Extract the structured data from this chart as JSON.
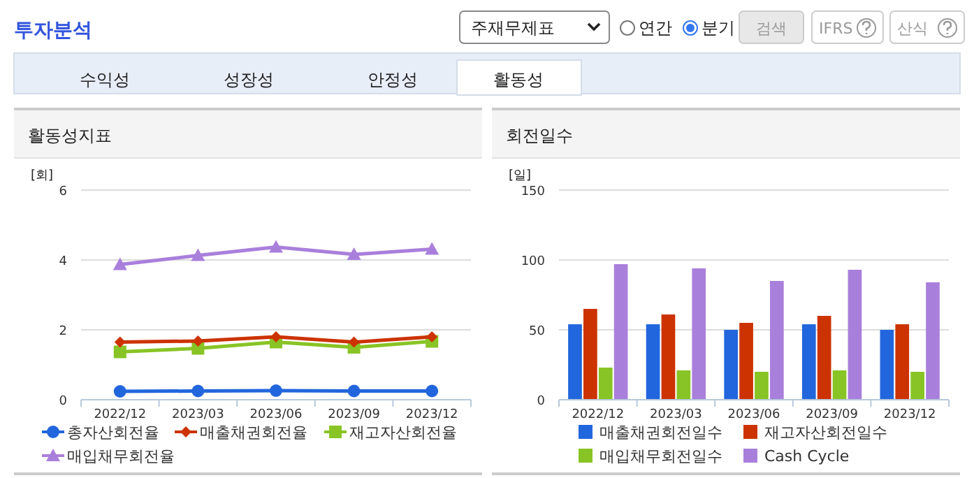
{
  "chart_data": [
    {
      "type": "other",
      "title": "투자분석",
      "annotations": [
        "주재무제표",
        "연간",
        "분기",
        "검색",
        "IFRS",
        "산식",
        "수익성",
        "성장성",
        "안정성",
        "활동성"
      ]
    },
    {
      "type": "line",
      "title": "활동성지표",
      "ylabel": "[회]",
      "categories": [
        "2022/12",
        "2023/03",
        "2023/06",
        "2023/09",
        "2023/12"
      ],
      "ylim": [
        0,
        6
      ],
      "yticks": [
        0,
        2,
        4,
        6
      ],
      "grid": "y",
      "legend": "bottom",
      "series": [
        {
          "name": "총자산회전율",
          "color": "#2266dd",
          "marker": "circle",
          "values": [
            0.24,
            0.25,
            0.26,
            0.25,
            0.25
          ]
        },
        {
          "name": "매출채권회전율",
          "color": "#cc3300",
          "marker": "diamond",
          "values": [
            1.65,
            1.68,
            1.8,
            1.65,
            1.8
          ]
        },
        {
          "name": "재고자산회전율",
          "color": "#88c425",
          "marker": "square",
          "values": [
            1.37,
            1.47,
            1.65,
            1.5,
            1.67
          ]
        },
        {
          "name": "매입채무회전율",
          "color": "#a97fdc",
          "marker": "triangle",
          "values": [
            3.87,
            4.13,
            4.37,
            4.16,
            4.31
          ]
        }
      ]
    },
    {
      "type": "bar",
      "title": "회전일수",
      "ylabel": "[일]",
      "categories": [
        "2022/12",
        "2023/03",
        "2023/06",
        "2023/09",
        "2023/12"
      ],
      "ylim": [
        0,
        150
      ],
      "yticks": [
        0,
        50,
        100,
        150
      ],
      "grid": "y",
      "legend": "bottom",
      "series": [
        {
          "name": "매출채권회전일수",
          "color": "#2266dd",
          "values": [
            54,
            54,
            50,
            54,
            50
          ]
        },
        {
          "name": "재고자산회전일수",
          "color": "#cc3300",
          "values": [
            65,
            61,
            55,
            60,
            54
          ]
        },
        {
          "name": "매입채무회전일수",
          "color": "#88c425",
          "values": [
            23,
            21,
            20,
            21,
            20
          ]
        },
        {
          "name": "Cash Cycle",
          "color": "#a97fdc",
          "values": [
            97,
            94,
            85,
            93,
            84
          ]
        }
      ]
    }
  ]
}
